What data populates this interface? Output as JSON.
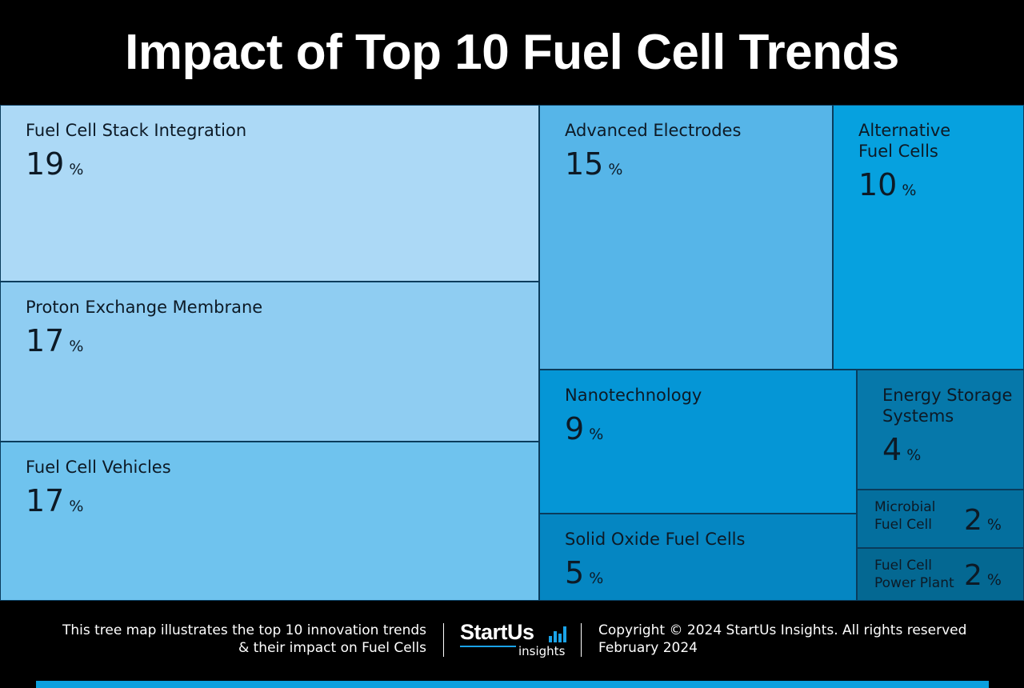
{
  "title": "Impact of Top 10 Fuel Cell Trends",
  "chart_data": {
    "type": "treemap",
    "unit": "%",
    "items": [
      {
        "label": "Fuel Cell Stack Integration",
        "value": 19,
        "color": "#acd9f6"
      },
      {
        "label": "Proton Exchange Membrane",
        "value": 17,
        "color": "#8fcdf2"
      },
      {
        "label": "Fuel Cell Vehicles",
        "value": 17,
        "color": "#6fc3ee"
      },
      {
        "label": "Advanced Electrodes",
        "value": 15,
        "color": "#56b5e8"
      },
      {
        "label": "Alternative\nFuel Cells",
        "value": 10,
        "color": "#06a1df"
      },
      {
        "label": "Nanotechnology",
        "value": 9,
        "color": "#0596d6"
      },
      {
        "label": "Solid Oxide Fuel Cells",
        "value": 5,
        "color": "#0586c2"
      },
      {
        "label": "Energy Storage\nSystems",
        "value": 4,
        "color": "#0678aa"
      },
      {
        "label": "Microbial\nFuel Cell",
        "value": 2,
        "color": "#046f9e"
      },
      {
        "label": "Fuel Cell\nPower Plant",
        "value": 2,
        "color": "#046892"
      }
    ]
  },
  "footer": {
    "description_line1": "This tree map illustrates the top 10 innovation trends",
    "description_line2": "& their impact on Fuel Cells",
    "logo_main": "StartUs",
    "logo_sub": "insights",
    "copyright": "Copyright © 2024 StartUs Insights. All rights reserved",
    "date": "February 2024"
  },
  "colors": {
    "accent": "#0aa0de",
    "background": "#000000"
  }
}
